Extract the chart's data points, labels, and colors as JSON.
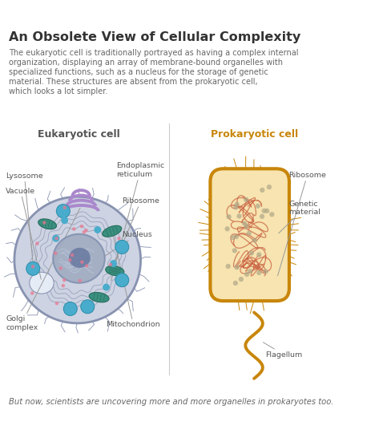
{
  "title": "An Obsolete View of Cellular Complexity",
  "subtitle_lines": [
    "The eukaryotic cell is traditionally portrayed as having a complex internal",
    "organization, displaying an array of membrane-bound organelles with",
    "specialized functions, such as a nucleus for the storage of genetic",
    "material. These structures are absent from the prokaryotic cell,",
    "which looks a lot simpler."
  ],
  "footer": "But now, scientists are uncovering more and more organelles in prokaryotes too.",
  "euk_label": "Eukaryotic cell",
  "prok_label": "Prokaryotic cell",
  "euk_label_color": "#555555",
  "prok_label_color": "#c8860a",
  "bg_color": "#ffffff",
  "title_color": "#333333",
  "body_color": "#666666",
  "euk_cell_fill": "#cdd3e2",
  "euk_cell_edge": "#8892b0",
  "euk_nucleus_fill": "#a0aac0",
  "euk_nucleus_edge": "#8090b0",
  "euk_nucleolus_fill": "#6878a0",
  "euk_er_color": "#7a86a8",
  "euk_mito_fill": "#3a9080",
  "euk_mito_edge": "#2a7060",
  "euk_lyso_fill": "#4aaccc",
  "euk_lyso_edge": "#2a8caa",
  "euk_vacuole_fill": "#e8eef8",
  "euk_vacuole_edge": "#8892b0",
  "euk_golgi_fill": "#aa88cc",
  "euk_ribosome_fill": "#4aaccc",
  "euk_dot_fill": "#e87890",
  "prok_cell_fill": "#f7e4b0",
  "prok_cell_edge": "#c8860a",
  "prok_dna_color": "#c86040",
  "prok_ribosome_fill": "#b8a870",
  "divider_color": "#cccccc",
  "annotation_color": "#555555",
  "line_color": "#999999"
}
